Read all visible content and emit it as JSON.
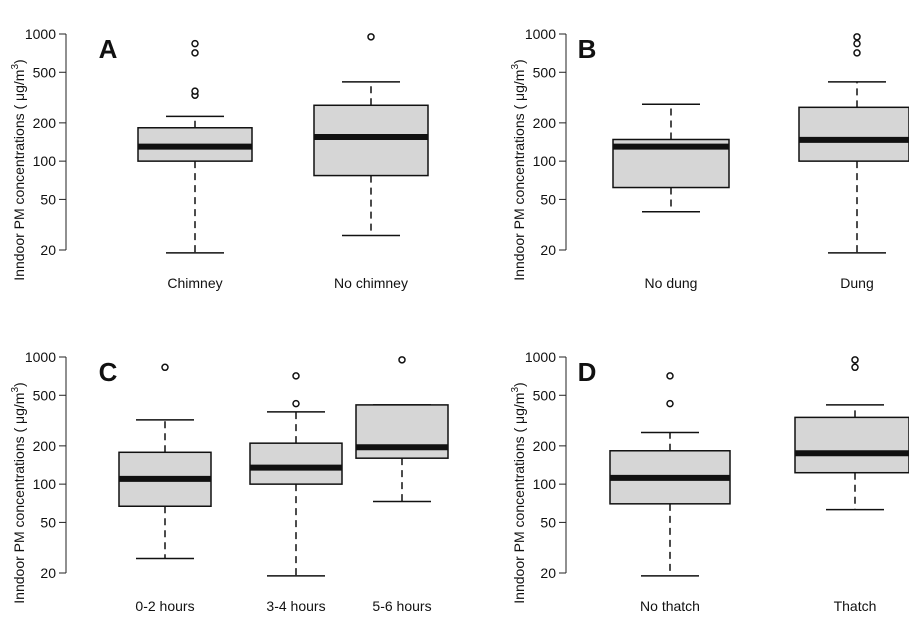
{
  "chart_data": [
    {
      "type": "box",
      "panel_label": "A",
      "ylabel": "Inndoor PM concentrations",
      "yunit_base": "μg/m",
      "yunit_exp": "3",
      "yscale": "log",
      "yticks": [
        20,
        50,
        100,
        200,
        500,
        1000
      ],
      "ytick_labels": [
        "20",
        "50",
        "100",
        "200",
        "500",
        "1000"
      ],
      "categories": [
        "Chimney",
        "No chimney"
      ],
      "boxes": [
        {
          "whisker_low": 19,
          "q1": 100,
          "median": 130,
          "q3": 183,
          "whisker_high": 225,
          "outliers": [
            330,
            355,
            710,
            840
          ]
        },
        {
          "whisker_low": 26,
          "q1": 77,
          "median": 155,
          "q3": 275,
          "whisker_high": 420,
          "outliers": [
            950
          ]
        }
      ]
    },
    {
      "type": "box",
      "panel_label": "B",
      "ylabel": "Inndoor PM concentrations",
      "yunit_base": "μg/m",
      "yunit_exp": "3",
      "yscale": "log",
      "yticks": [
        20,
        50,
        100,
        200,
        500,
        1000
      ],
      "ytick_labels": [
        "20",
        "50",
        "100",
        "200",
        "500",
        "1000"
      ],
      "categories": [
        "No dung",
        "Dung"
      ],
      "boxes": [
        {
          "whisker_low": 40,
          "q1": 62,
          "median": 130,
          "q3": 148,
          "whisker_high": 280,
          "outliers": []
        },
        {
          "whisker_low": 19,
          "q1": 100,
          "median": 147,
          "q3": 265,
          "whisker_high": 420,
          "outliers": [
            710,
            840,
            950
          ]
        }
      ]
    },
    {
      "type": "box",
      "panel_label": "C",
      "ylabel": "Inndoor PM concentrations",
      "yunit_base": "μg/m",
      "yunit_exp": "3",
      "yscale": "log",
      "yticks": [
        20,
        50,
        100,
        200,
        500,
        1000
      ],
      "ytick_labels": [
        "20",
        "50",
        "100",
        "200",
        "500",
        "1000"
      ],
      "categories": [
        "0-2 hours",
        "3-4 hours",
        "5-6 hours"
      ],
      "boxes": [
        {
          "whisker_low": 26,
          "q1": 67,
          "median": 110,
          "q3": 178,
          "whisker_high": 320,
          "outliers": [
            830
          ]
        },
        {
          "whisker_low": 19,
          "q1": 100,
          "median": 135,
          "q3": 210,
          "whisker_high": 370,
          "outliers": [
            430,
            710
          ]
        },
        {
          "whisker_low": 73,
          "q1": 160,
          "median": 195,
          "q3": 420,
          "whisker_high": 420,
          "outliers": [
            950
          ]
        }
      ]
    },
    {
      "type": "box",
      "panel_label": "D",
      "ylabel": "Inndoor PM concentrations",
      "yunit_base": "μg/m",
      "yunit_exp": "3",
      "yscale": "log",
      "yticks": [
        20,
        50,
        100,
        200,
        500,
        1000
      ],
      "ytick_labels": [
        "20",
        "50",
        "100",
        "200",
        "500",
        "1000"
      ],
      "categories": [
        "No thatch",
        "Thatch"
      ],
      "boxes": [
        {
          "whisker_low": 19,
          "q1": 70,
          "median": 112,
          "q3": 183,
          "whisker_high": 255,
          "outliers": [
            430,
            710
          ]
        },
        {
          "whisker_low": 63,
          "q1": 123,
          "median": 175,
          "q3": 335,
          "whisker_high": 420,
          "outliers": [
            830,
            950
          ]
        }
      ]
    }
  ]
}
